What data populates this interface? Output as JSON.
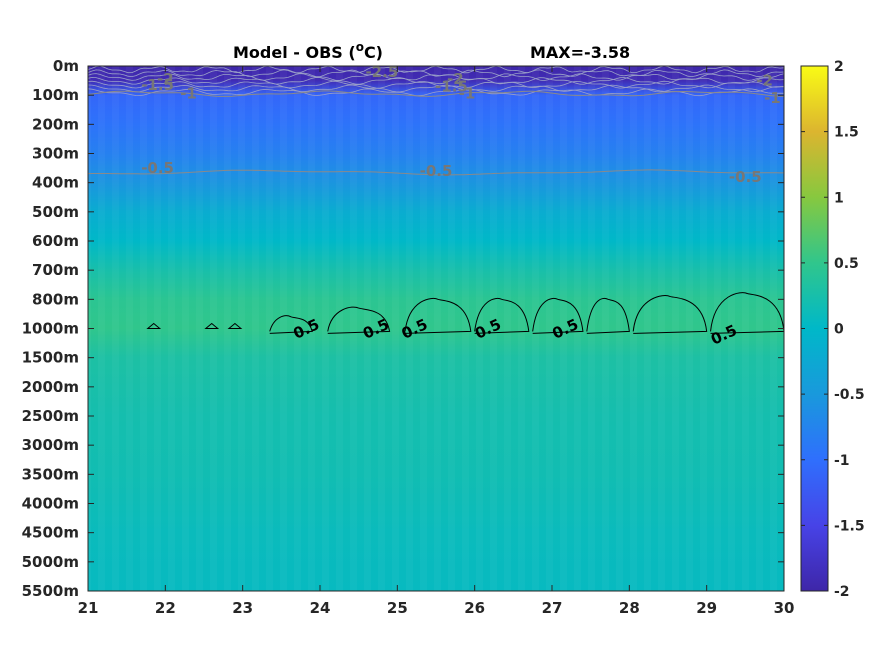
{
  "chart_data": {
    "type": "heatmap",
    "title": "Model - OBS (",
    "title_unit_sup": "o",
    "title_unit_tail": "C)",
    "max_label": "MAX=-3.58",
    "xlabel": "",
    "ylabel": "",
    "x_ticks": [
      "21",
      "22",
      "23",
      "24",
      "25",
      "26",
      "27",
      "28",
      "29",
      "30"
    ],
    "xlim": [
      21,
      30
    ],
    "y_ticks": [
      "0m",
      "100m",
      "200m",
      "300m",
      "400m",
      "500m",
      "600m",
      "700m",
      "800m",
      "1000m",
      "1500m",
      "2000m",
      "2500m",
      "3000m",
      "3500m",
      "4000m",
      "4500m",
      "5000m",
      "5500m"
    ],
    "colorbar": {
      "ticks": [
        "2",
        "1.5",
        "1",
        "0.5",
        "0",
        "-0.5",
        "-1",
        "-1.5",
        "-2"
      ],
      "clim": [
        -2,
        2
      ],
      "colormap": [
        "#3e26a8",
        "#4743e7",
        "#2f6ffd",
        "#1999dc",
        "#00b8c8",
        "#30c68c",
        "#87c83f",
        "#dcb52f",
        "#f9fb15"
      ]
    },
    "depth_profile": [
      {
        "level": 0,
        "value": -2.0
      },
      {
        "level": 0.5,
        "value": -1.9
      },
      {
        "level": 1,
        "value": -1.1
      },
      {
        "level": 2,
        "value": -0.95
      },
      {
        "level": 3,
        "value": -0.8
      },
      {
        "level": 4,
        "value": -0.55
      },
      {
        "level": 5,
        "value": -0.2
      },
      {
        "level": 6,
        "value": 0.0
      },
      {
        "level": 7,
        "value": 0.25
      },
      {
        "level": 8,
        "value": 0.45
      },
      {
        "level": 9,
        "value": 0.5
      },
      {
        "level": 10,
        "value": 0.3
      },
      {
        "level": 12,
        "value": 0.22
      },
      {
        "level": 14,
        "value": 0.18
      },
      {
        "level": 16,
        "value": 0.1
      },
      {
        "level": 18,
        "value": 0.07
      }
    ],
    "contour_labels": [
      {
        "text": "-2",
        "x": 22.0,
        "level": 0.45,
        "color": "#777777"
      },
      {
        "text": "-1.5",
        "x": 21.9,
        "level": 0.65,
        "color": "#777777"
      },
      {
        "text": "-1",
        "x": 22.3,
        "level": 0.95,
        "color": "#777777"
      },
      {
        "text": "-2.5",
        "x": 24.8,
        "level": 0.2,
        "color": "#777777"
      },
      {
        "text": "-2",
        "x": 25.75,
        "level": 0.45,
        "color": "#777777"
      },
      {
        "text": "-1.5",
        "x": 25.7,
        "level": 0.7,
        "color": "#777777"
      },
      {
        "text": "-1",
        "x": 25.9,
        "level": 0.95,
        "color": "#777777"
      },
      {
        "text": "-2",
        "x": 29.75,
        "level": 0.5,
        "color": "#777777"
      },
      {
        "text": "-1",
        "x": 29.85,
        "level": 1.1,
        "color": "#777777"
      },
      {
        "text": "-0.5",
        "x": 21.9,
        "level": 3.5,
        "color": "#777777"
      },
      {
        "text": "-0.5",
        "x": 25.5,
        "level": 3.6,
        "color": "#777777"
      },
      {
        "text": "-0.5",
        "x": 29.5,
        "level": 3.8,
        "color": "#777777"
      },
      {
        "text": "0.5",
        "x": 23.85,
        "level": 9.0,
        "color": "#000000"
      },
      {
        "text": "0.5",
        "x": 24.75,
        "level": 9.0,
        "color": "#000000"
      },
      {
        "text": "0.5",
        "x": 25.25,
        "level": 9.0,
        "color": "#000000"
      },
      {
        "text": "0.5",
        "x": 26.2,
        "level": 9.0,
        "color": "#000000"
      },
      {
        "text": "0.5",
        "x": 27.2,
        "level": 9.0,
        "color": "#000000"
      },
      {
        "text": "0.5",
        "x": 29.25,
        "level": 9.2,
        "color": "#000000"
      }
    ]
  }
}
